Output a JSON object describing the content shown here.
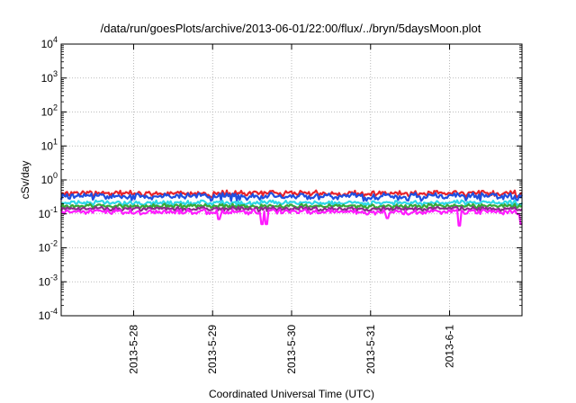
{
  "chart_data": {
    "type": "line",
    "title": "/data/run/goesPlots/archive/2013-06-01/22:00/flux/../bryn/5daysMoon.plot",
    "xlabel": "Coordinated Universal Time (UTC)",
    "ylabel": "cSv/day",
    "yscale": "log",
    "ylim": [
      0.0001,
      10000
    ],
    "y_ticks": [
      {
        "base": "10",
        "exp": "-4"
      },
      {
        "base": "10",
        "exp": "-3"
      },
      {
        "base": "10",
        "exp": "-2"
      },
      {
        "base": "10",
        "exp": "-1"
      },
      {
        "base": "10",
        "exp": "0"
      },
      {
        "base": "10",
        "exp": "1"
      },
      {
        "base": "10",
        "exp": "2"
      },
      {
        "base": "10",
        "exp": "3"
      },
      {
        "base": "10",
        "exp": "4"
      }
    ],
    "xlim": [
      "2013-05-27 02:00",
      "2013-06-01 22:00"
    ],
    "x_ticks": [
      "2013-5-28",
      "2013-5-29",
      "2013-5-30",
      "2013-5-31",
      "2013-6-1"
    ],
    "grid": true,
    "series": [
      {
        "color": "#e8222a",
        "level": 0.4,
        "spread": 0.07
      },
      {
        "color": "#1f4fe0",
        "level": 0.33,
        "spread": 0.08
      },
      {
        "color": "#2ed8e8",
        "level": 0.21,
        "spread": 0.06
      },
      {
        "color": "#36a836",
        "level": 0.17,
        "spread": 0.05
      },
      {
        "color": "#8b2c8b",
        "level": 0.14,
        "spread": 0.05
      },
      {
        "color": "#ff1cff",
        "level": 0.115,
        "spread": 0.06
      }
    ],
    "dips": [
      {
        "date": "2013-05-29 02:00",
        "series": 5,
        "value": 0.07
      },
      {
        "date": "2013-05-29 15:00",
        "series": 5,
        "value": 0.05
      },
      {
        "date": "2013-05-29 16:30",
        "series": 5,
        "value": 0.05
      },
      {
        "date": "2013-05-31 05:00",
        "series": 5,
        "value": 0.075
      },
      {
        "date": "2013-06-01 03:00",
        "series": 5,
        "value": 0.045
      },
      {
        "date": "2013-06-01 22:00",
        "series": 5,
        "value": 0.05
      }
    ]
  }
}
